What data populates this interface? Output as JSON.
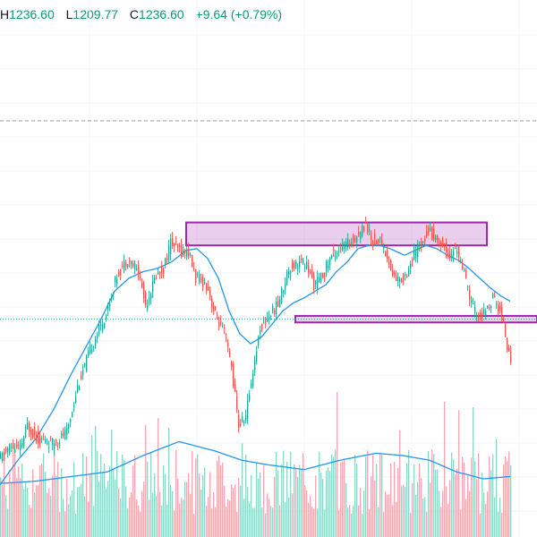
{
  "legend": {
    "h_label": "H",
    "h_value": "1236.60",
    "l_label": "L",
    "l_value": "1209.77",
    "c_label": "C",
    "c_value": "1236.60",
    "change": "+9.64 (+0.79%)"
  },
  "colors": {
    "up": "#26a69a",
    "down": "#ef5350",
    "up_vol": "#8fd3c9",
    "down_vol": "#f4a7ae",
    "ma": "#2196f3",
    "zone_fill": "rgba(186,104,200,0.32)",
    "zone_border": "#9c27b0",
    "grid": "#f0f3fa",
    "dashed": "#9598a1",
    "dotted": "#26a69a"
  },
  "chart_data": {
    "type": "candlestick",
    "title": "",
    "xlabel": "",
    "ylabel": "",
    "ylim": [
      1180,
      1480
    ],
    "volume_ylim": [
      0,
      1
    ],
    "grid": true,
    "anchors": [
      [
        0,
        1205
      ],
      [
        6,
        1213
      ],
      [
        12,
        1212
      ],
      [
        16,
        1226
      ],
      [
        22,
        1218
      ],
      [
        30,
        1215
      ],
      [
        38,
        1222
      ],
      [
        44,
        1250
      ],
      [
        52,
        1275
      ],
      [
        60,
        1294
      ],
      [
        66,
        1318
      ],
      [
        72,
        1328
      ],
      [
        78,
        1320
      ],
      [
        82,
        1300
      ],
      [
        88,
        1318
      ],
      [
        92,
        1322
      ],
      [
        96,
        1338
      ],
      [
        102,
        1332
      ],
      [
        106,
        1332
      ],
      [
        110,
        1316
      ],
      [
        114,
        1314
      ],
      [
        117,
        1310
      ],
      [
        120,
        1296
      ],
      [
        126,
        1282
      ],
      [
        130,
        1262
      ],
      [
        134,
        1226
      ],
      [
        138,
        1232
      ],
      [
        142,
        1260
      ],
      [
        146,
        1286
      ],
      [
        150,
        1292
      ],
      [
        156,
        1300
      ],
      [
        162,
        1322
      ],
      [
        168,
        1326
      ],
      [
        172,
        1324
      ],
      [
        176,
        1312
      ],
      [
        180,
        1316
      ],
      [
        186,
        1330
      ],
      [
        190,
        1334
      ],
      [
        194,
        1336
      ],
      [
        198,
        1340
      ],
      [
        202,
        1344
      ],
      [
        205,
        1350
      ],
      [
        208,
        1340
      ],
      [
        214,
        1338
      ],
      [
        220,
        1318
      ],
      [
        224,
        1314
      ],
      [
        228,
        1320
      ],
      [
        232,
        1330
      ],
      [
        236,
        1338
      ],
      [
        240,
        1346
      ],
      [
        244,
        1340
      ],
      [
        248,
        1336
      ],
      [
        252,
        1330
      ],
      [
        256,
        1334
      ],
      [
        260,
        1318
      ],
      [
        264,
        1300
      ],
      [
        268,
        1292
      ],
      [
        272,
        1295
      ],
      [
        276,
        1304
      ],
      [
        279,
        1298
      ],
      [
        282,
        1290
      ],
      [
        285,
        1268
      ]
    ],
    "ma_points": [
      [
        0,
        1190
      ],
      [
        10,
        1205
      ],
      [
        20,
        1218
      ],
      [
        30,
        1236
      ],
      [
        40,
        1258
      ],
      [
        48,
        1274
      ],
      [
        56,
        1290
      ],
      [
        64,
        1308
      ],
      [
        72,
        1316
      ],
      [
        80,
        1320
      ],
      [
        88,
        1322
      ],
      [
        96,
        1326
      ],
      [
        104,
        1333
      ],
      [
        110,
        1334
      ],
      [
        116,
        1328
      ],
      [
        122,
        1316
      ],
      [
        128,
        1296
      ],
      [
        134,
        1282
      ],
      [
        140,
        1276
      ],
      [
        146,
        1280
      ],
      [
        152,
        1288
      ],
      [
        158,
        1296
      ],
      [
        164,
        1301
      ],
      [
        170,
        1304
      ],
      [
        176,
        1308
      ],
      [
        182,
        1312
      ],
      [
        188,
        1320
      ],
      [
        194,
        1326
      ],
      [
        200,
        1334
      ],
      [
        206,
        1336
      ],
      [
        212,
        1336
      ],
      [
        218,
        1334
      ],
      [
        226,
        1330
      ],
      [
        232,
        1333
      ],
      [
        238,
        1336
      ],
      [
        244,
        1334
      ],
      [
        250,
        1330
      ],
      [
        256,
        1327
      ],
      [
        262,
        1322
      ],
      [
        268,
        1316
      ],
      [
        274,
        1310
      ],
      [
        280,
        1305
      ],
      [
        285,
        1302
      ]
    ],
    "upper_zone": {
      "x_start": 104,
      "x_end": 272,
      "low": 1336,
      "high": 1350
    },
    "lower_zone": {
      "x_start": 165,
      "x_end": 300,
      "low": 1289,
      "high": 1293
    },
    "dashed_level": 1412,
    "dotted_level": 1291,
    "volume_ma": [
      [
        0,
        0.23
      ],
      [
        20,
        0.24
      ],
      [
        40,
        0.26
      ],
      [
        60,
        0.28
      ],
      [
        80,
        0.35
      ],
      [
        100,
        0.41
      ],
      [
        110,
        0.39
      ],
      [
        120,
        0.37
      ],
      [
        135,
        0.33
      ],
      [
        150,
        0.31
      ],
      [
        170,
        0.29
      ],
      [
        190,
        0.33
      ],
      [
        210,
        0.36
      ],
      [
        225,
        0.35
      ],
      [
        240,
        0.33
      ],
      [
        255,
        0.28
      ],
      [
        270,
        0.25
      ],
      [
        285,
        0.26
      ]
    ]
  }
}
